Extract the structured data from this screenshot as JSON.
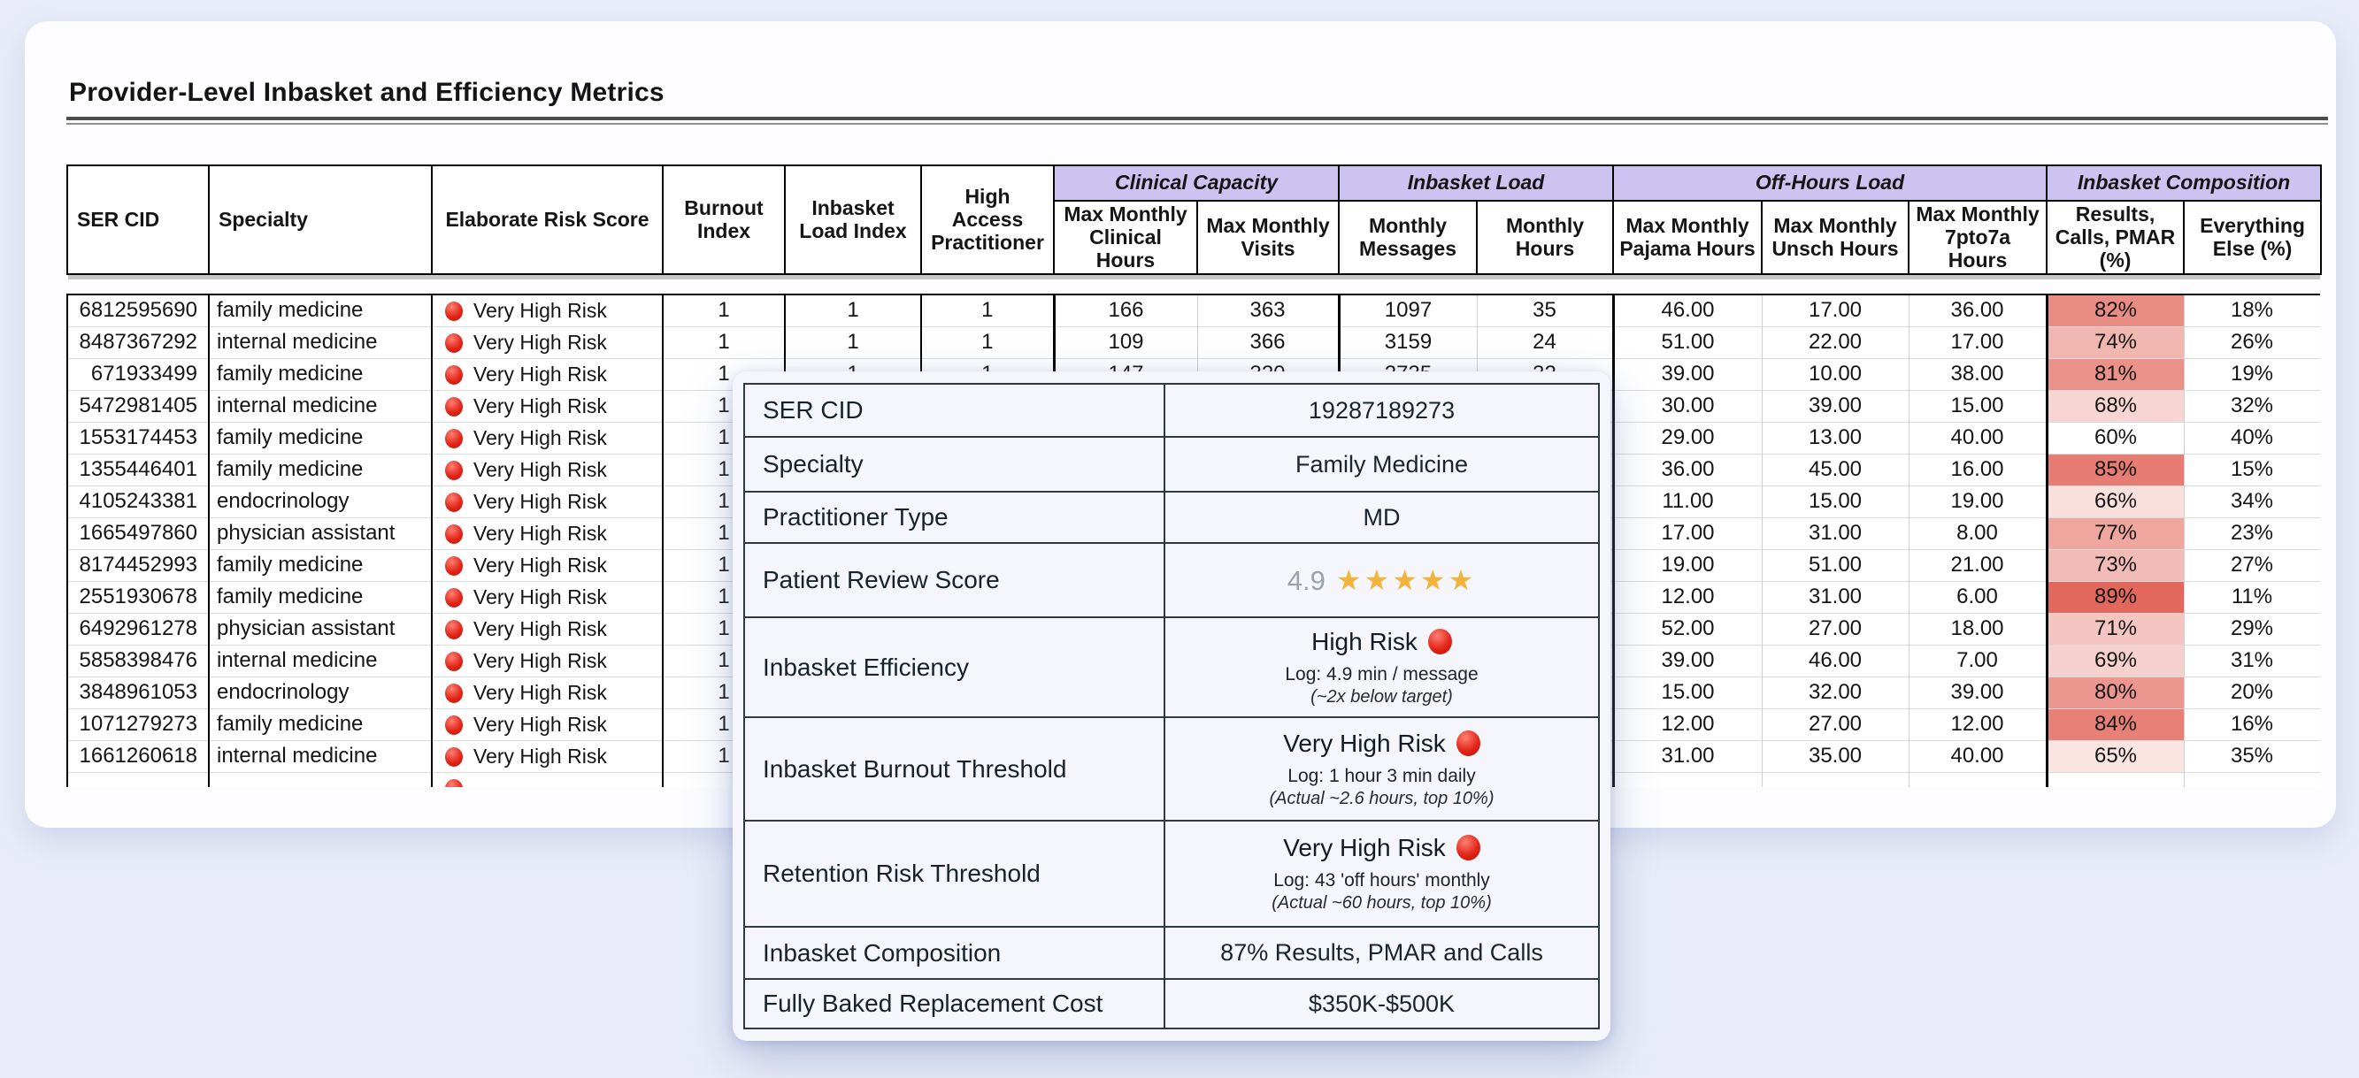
{
  "page": {
    "title": "Provider-Level Inbasket and Efficiency Metrics"
  },
  "colors": {
    "page_bg": "#e9ecf8",
    "card_bg": "#fdfdff",
    "group_header_bg": "#cdc3f1",
    "risk_dot_red": "#e3261a",
    "star_gold": "#f1b43e",
    "pmar_scale_max": "#e2675c",
    "pmar_scale_min": "#ffffff"
  },
  "table": {
    "simple_headers": [
      "SER CID",
      "Specialty",
      "Elaborate Risk Score",
      "Burnout Index",
      "Inbasket Load Index",
      "High Access Practitioner"
    ],
    "groups": [
      {
        "label": "Clinical Capacity",
        "children": [
          "Max Monthly Clinical Hours",
          "Max Monthly Visits"
        ]
      },
      {
        "label": "Inbasket Load",
        "children": [
          "Monthly Messages",
          "Monthly Hours"
        ]
      },
      {
        "label": "Off-Hours Load",
        "children": [
          "Max Monthly Pajama Hours",
          "Max Monthly Unsch Hours",
          "Max Monthly 7pto7a Hours"
        ]
      },
      {
        "label": "Inbasket Composition",
        "children": [
          "Results, Calls, PMAR (%)",
          "Everything Else (%)"
        ]
      }
    ],
    "rows": [
      {
        "ser": "6812595690",
        "specialty": "family medicine",
        "risk": "Very High Risk",
        "burnout": "1",
        "load": "1",
        "high_access": "1",
        "clin_hours": "166",
        "visits": "363",
        "messages": "1097",
        "monthly_hours": "35",
        "pajama": "46.00",
        "unsch": "17.00",
        "seven": "36.00",
        "pmar": "82%",
        "else_pct": "18%",
        "pmar_color": "#e98c83"
      },
      {
        "ser": "8487367292",
        "specialty": "internal medicine",
        "risk": "Very High Risk",
        "burnout": "1",
        "load": "1",
        "high_access": "1",
        "clin_hours": "109",
        "visits": "366",
        "messages": "3159",
        "monthly_hours": "24",
        "pajama": "51.00",
        "unsch": "22.00",
        "seven": "17.00",
        "pmar": "74%",
        "else_pct": "26%",
        "pmar_color": "#f1b6b0"
      },
      {
        "ser": "671933499",
        "specialty": "family medicine",
        "risk": "Very High Risk",
        "burnout": "1",
        "load": "1",
        "high_access": "1",
        "clin_hours": "147",
        "visits": "320",
        "messages": "2735",
        "monthly_hours": "32",
        "pajama": "39.00",
        "unsch": "10.00",
        "seven": "38.00",
        "pmar": "81%",
        "else_pct": "19%",
        "pmar_color": "#ea9189"
      },
      {
        "ser": "5472981405",
        "specialty": "internal medicine",
        "risk": "Very High Risk",
        "burnout": "1",
        "load": "",
        "high_access": "",
        "clin_hours": "",
        "visits": "",
        "messages": "",
        "monthly_hours": "",
        "pajama": "30.00",
        "unsch": "39.00",
        "seven": "15.00",
        "pmar": "68%",
        "else_pct": "32%",
        "pmar_color": "#f7d5d2"
      },
      {
        "ser": "1553174453",
        "specialty": "family medicine",
        "risk": "Very High Risk",
        "burnout": "1",
        "load": "",
        "high_access": "",
        "clin_hours": "",
        "visits": "",
        "messages": "",
        "monthly_hours": "",
        "pajama": "29.00",
        "unsch": "13.00",
        "seven": "40.00",
        "pmar": "60%",
        "else_pct": "40%",
        "pmar_color": "#ffffff"
      },
      {
        "ser": "1355446401",
        "specialty": "family medicine",
        "risk": "Very High Risk",
        "burnout": "1",
        "load": "",
        "high_access": "",
        "clin_hours": "",
        "visits": "",
        "messages": "",
        "monthly_hours": "",
        "pajama": "36.00",
        "unsch": "45.00",
        "seven": "16.00",
        "pmar": "85%",
        "else_pct": "15%",
        "pmar_color": "#e67c73"
      },
      {
        "ser": "4105243381",
        "specialty": "endocrinology",
        "risk": "Very High Risk",
        "burnout": "1",
        "load": "",
        "high_access": "",
        "clin_hours": "",
        "visits": "",
        "messages": "",
        "monthly_hours": "",
        "pajama": "11.00",
        "unsch": "15.00",
        "seven": "19.00",
        "pmar": "66%",
        "else_pct": "34%",
        "pmar_color": "#f9e0dd"
      },
      {
        "ser": "1665497860",
        "specialty": "physician assistant",
        "risk": "Very High Risk",
        "burnout": "1",
        "load": "",
        "high_access": "",
        "clin_hours": "",
        "visits": "",
        "messages": "",
        "monthly_hours": "",
        "pajama": "17.00",
        "unsch": "31.00",
        "seven": "8.00",
        "pmar": "77%",
        "else_pct": "23%",
        "pmar_color": "#eea69f"
      },
      {
        "ser": "8174452993",
        "specialty": "family medicine",
        "risk": "Very High Risk",
        "burnout": "1",
        "load": "",
        "high_access": "",
        "clin_hours": "",
        "visits": "",
        "messages": "",
        "monthly_hours": "",
        "pajama": "19.00",
        "unsch": "51.00",
        "seven": "21.00",
        "pmar": "73%",
        "else_pct": "27%",
        "pmar_color": "#f2bbb6"
      },
      {
        "ser": "2551930678",
        "specialty": "family medicine",
        "risk": "Very High Risk",
        "burnout": "1",
        "load": "",
        "high_access": "",
        "clin_hours": "",
        "visits": "",
        "messages": "",
        "monthly_hours": "",
        "pajama": "12.00",
        "unsch": "31.00",
        "seven": "6.00",
        "pmar": "89%",
        "else_pct": "11%",
        "pmar_color": "#e2675c"
      },
      {
        "ser": "6492961278",
        "specialty": "physician assistant",
        "risk": "Very High Risk",
        "burnout": "1",
        "load": "",
        "high_access": "",
        "clin_hours": "",
        "visits": "",
        "messages": "",
        "monthly_hours": "",
        "pajama": "52.00",
        "unsch": "27.00",
        "seven": "18.00",
        "pmar": "71%",
        "else_pct": "29%",
        "pmar_color": "#f4c5c1"
      },
      {
        "ser": "5858398476",
        "specialty": "internal medicine",
        "risk": "Very High Risk",
        "burnout": "1",
        "load": "",
        "high_access": "",
        "clin_hours": "",
        "visits": "",
        "messages": "",
        "monthly_hours": "",
        "pajama": "39.00",
        "unsch": "46.00",
        "seven": "7.00",
        "pmar": "69%",
        "else_pct": "31%",
        "pmar_color": "#f6d0cc"
      },
      {
        "ser": "3848961053",
        "specialty": "endocrinology",
        "risk": "Very High Risk",
        "burnout": "1",
        "load": "",
        "high_access": "",
        "clin_hours": "",
        "visits": "",
        "messages": "",
        "monthly_hours": "",
        "pajama": "15.00",
        "unsch": "32.00",
        "seven": "39.00",
        "pmar": "80%",
        "else_pct": "20%",
        "pmar_color": "#eb968f"
      },
      {
        "ser": "1071279273",
        "specialty": "family medicine",
        "risk": "Very High Risk",
        "burnout": "1",
        "load": "",
        "high_access": "",
        "clin_hours": "",
        "visits": "",
        "messages": "",
        "monthly_hours": "",
        "pajama": "12.00",
        "unsch": "27.00",
        "seven": "12.00",
        "pmar": "84%",
        "else_pct": "16%",
        "pmar_color": "#e78178"
      },
      {
        "ser": "1661260618",
        "specialty": "internal medicine",
        "risk": "Very High Risk",
        "burnout": "1",
        "load": "",
        "high_access": "",
        "clin_hours": "",
        "visits": "",
        "messages": "",
        "monthly_hours": "",
        "pajama": "31.00",
        "unsch": "35.00",
        "seven": "40.00",
        "pmar": "65%",
        "else_pct": "35%",
        "pmar_color": "#fae5e3"
      }
    ],
    "partial_row": {
      "has_risk_dot": true
    }
  },
  "popup": {
    "ser": {
      "label": "SER CID",
      "value": "19287189273"
    },
    "specialty": {
      "label": "Specialty",
      "value": "Family Medicine"
    },
    "type": {
      "label": "Practitioner Type",
      "value": "MD"
    },
    "review": {
      "label": "Patient Review Score",
      "score": "4.9",
      "stars": "★★★★★"
    },
    "efficiency": {
      "label": "Inbasket Efficiency",
      "status": "High Risk",
      "log": "Log: 4.9 min / message",
      "note": "(~2x below target)"
    },
    "burnout": {
      "label": "Inbasket Burnout Threshold",
      "status": "Very High Risk",
      "log": "Log: 1 hour 3 min daily",
      "note": "(Actual ~2.6 hours, top 10%)"
    },
    "retention": {
      "label": "Retention Risk Threshold",
      "status": "Very High Risk",
      "log": "Log: 43 'off hours' monthly",
      "note": "(Actual ~60 hours, top 10%)"
    },
    "composition": {
      "label": "Inbasket Composition",
      "value": "87% Results, PMAR and Calls"
    },
    "cost": {
      "label": "Fully Baked Replacement Cost",
      "value": "$350K-$500K"
    }
  }
}
